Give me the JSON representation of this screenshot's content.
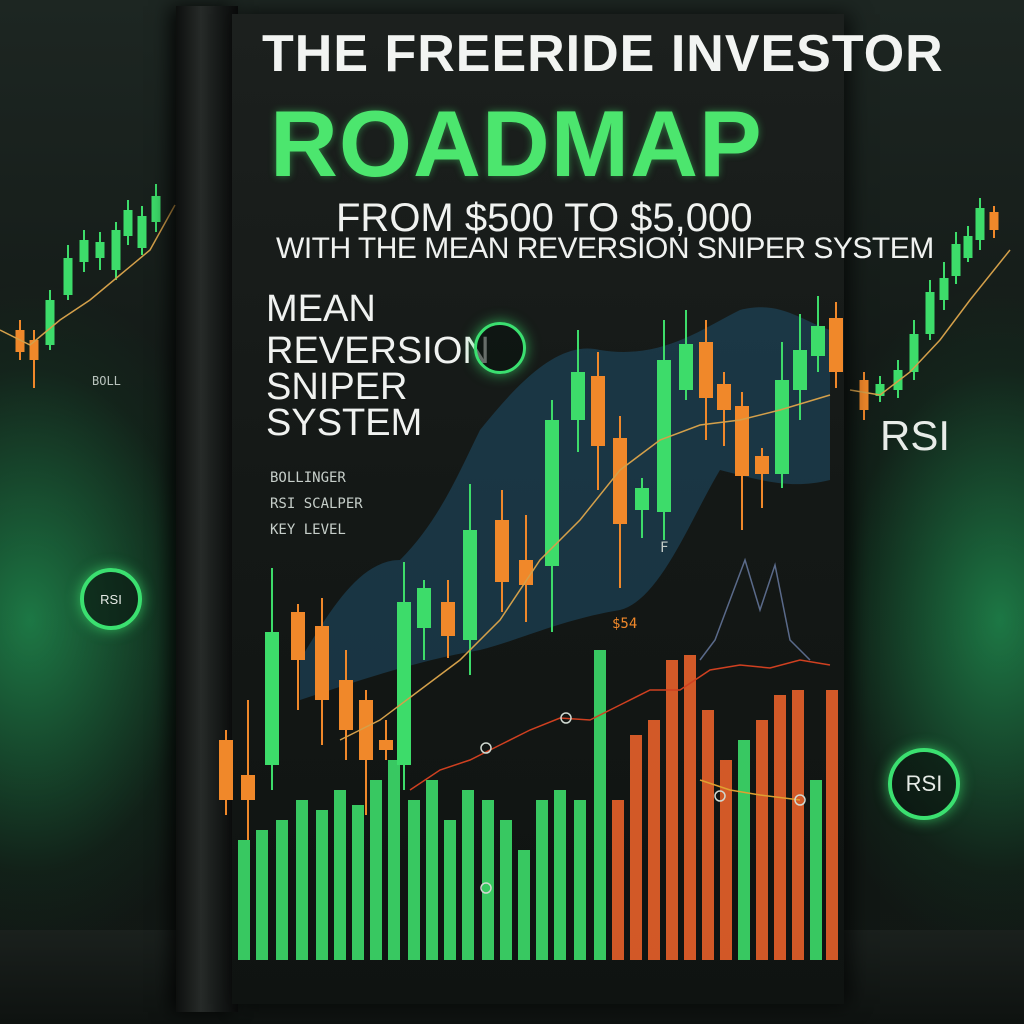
{
  "cover": {
    "title_top": "THE FREERIDE INVESTOR",
    "title_main": "ROADMAP",
    "subtitle_line1": "FROM  $500 TO   $5,000",
    "subtitle_line2": "WITH THE MEAN REVERSION SNIPER SYSTEM",
    "side_title": [
      "MEAN",
      "REVERSION",
      "SNIPER",
      "SYSTEM"
    ],
    "scribble_lines": [
      "BOLLINGER",
      "RSI SCALPER",
      "KEY LEVEL"
    ],
    "inner_marks": [
      "$54",
      "F"
    ]
  },
  "background": {
    "rsi_text": "RSI",
    "left_badge_text": "RSI",
    "right_badge_text": "RSI",
    "left_label": "BOLL"
  },
  "colors": {
    "accent_green": "#4ce66e",
    "candle_green": "#3ddc6a",
    "candle_orange": "#f0882a",
    "bar_orange": "#e8602a",
    "wave_blue": "#1f4f6a"
  }
}
